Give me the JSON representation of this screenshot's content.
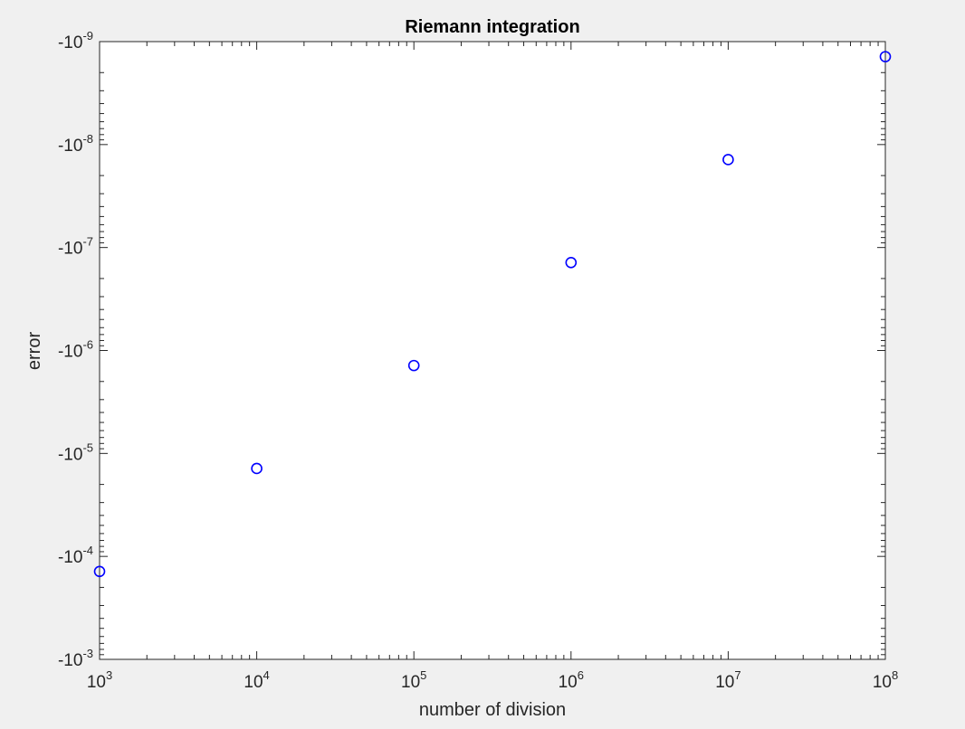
{
  "chart_data": {
    "type": "scatter",
    "title": "Riemann integration",
    "xlabel": "number of division",
    "ylabel": "error",
    "x_scale": "log",
    "y_scale": "log",
    "xlim": [
      1000,
      100000000
    ],
    "ylim": [
      -0.001,
      -1e-09
    ],
    "x_ticks": [
      {
        "base": "10",
        "exp": "3",
        "value": 1000
      },
      {
        "base": "10",
        "exp": "4",
        "value": 10000
      },
      {
        "base": "10",
        "exp": "5",
        "value": 100000
      },
      {
        "base": "10",
        "exp": "6",
        "value": 1000000
      },
      {
        "base": "10",
        "exp": "7",
        "value": 10000000
      },
      {
        "base": "10",
        "exp": "8",
        "value": 100000000
      }
    ],
    "y_ticks": [
      {
        "base": "-10",
        "exp": "-3",
        "value": -0.001
      },
      {
        "base": "-10",
        "exp": "-4",
        "value": -0.0001
      },
      {
        "base": "-10",
        "exp": "-5",
        "value": -1e-05
      },
      {
        "base": "-10",
        "exp": "-6",
        "value": -1e-06
      },
      {
        "base": "-10",
        "exp": "-7",
        "value": -1e-07
      },
      {
        "base": "-10",
        "exp": "-8",
        "value": -1e-08
      },
      {
        "base": "-10",
        "exp": "-9",
        "value": -1e-09
      }
    ],
    "series": [
      {
        "marker": "circle",
        "color": "#0000ff",
        "points": [
          {
            "x": 1000,
            "y": -0.00014
          },
          {
            "x": 10000,
            "y": -1.4e-05
          },
          {
            "x": 100000,
            "y": -1.4e-06
          },
          {
            "x": 1000000,
            "y": -1.4e-07
          },
          {
            "x": 10000000,
            "y": -1.4e-08
          },
          {
            "x": 100000000,
            "y": -1.4e-09
          }
        ]
      }
    ],
    "grid": false,
    "box": true
  }
}
